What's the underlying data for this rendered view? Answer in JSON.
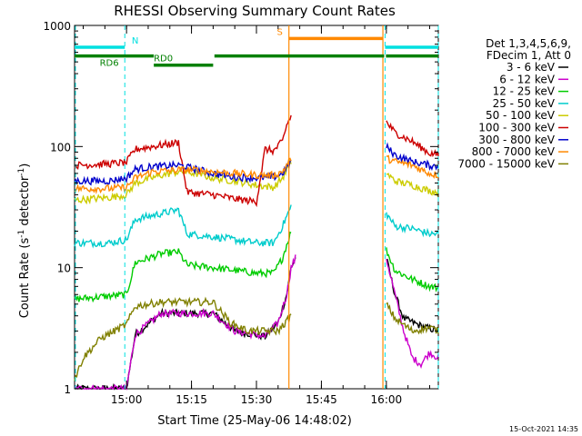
{
  "chart_data": {
    "type": "line",
    "title": "RHESSI Observing Summary Count Rates",
    "xlabel": "Start Time (25-May-06 14:48:02)",
    "ylabel_parts": [
      "Count Rate (s",
      "-1",
      " detector",
      "-1",
      ")"
    ],
    "footer": "15-Oct-2021 14:35",
    "x_range_minutes": [
      48,
      132
    ],
    "x_ticks": [
      {
        "m": 60,
        "label": "15:00"
      },
      {
        "m": 75,
        "label": "15:15"
      },
      {
        "m": 90,
        "label": "15:30"
      },
      {
        "m": 105,
        "label": "15:45"
      },
      {
        "m": 120,
        "label": "16:00"
      },
      {
        "m": 135,
        "label": "16:15"
      }
    ],
    "y_scale": "log",
    "y_range": [
      1,
      1000
    ],
    "y_ticks": [
      {
        "v": 1,
        "label": "1"
      },
      {
        "v": 10,
        "label": "10"
      },
      {
        "v": 100,
        "label": "100"
      },
      {
        "v": 1000,
        "label": "1000"
      }
    ],
    "legend": {
      "header": [
        "Det 1,3,4,5,6,9,",
        "FDecim 1, Att 0"
      ],
      "placement": "right"
    },
    "series": [
      {
        "name": "3 - 6 keV",
        "color": "#000000",
        "segments": [
          [
            [
              48,
              1.0
            ],
            [
              60,
              1.0
            ],
            [
              62,
              2.8
            ],
            [
              68,
              4.2
            ],
            [
              80,
              4.2
            ],
            [
              85,
              3.0
            ],
            [
              92,
              2.7
            ],
            [
              95,
              3.5
            ],
            [
              97,
              6.0
            ],
            [
              98,
              10
            ],
            [
              99,
              12
            ]
          ],
          [
            [
              120,
              12
            ],
            [
              122,
              6.0
            ],
            [
              124,
              3.8
            ],
            [
              128,
              3.3
            ],
            [
              132,
              3.0
            ]
          ]
        ]
      },
      {
        "name": "6 - 12 keV",
        "color": "#cc00cc",
        "segments": [
          [
            [
              48,
              1.0
            ],
            [
              60,
              1.0
            ],
            [
              62,
              2.8
            ],
            [
              68,
              4.2
            ],
            [
              80,
              4.2
            ],
            [
              85,
              3.0
            ],
            [
              92,
              2.7
            ],
            [
              95,
              3.5
            ],
            [
              97,
              6.0
            ],
            [
              98,
              10
            ],
            [
              99,
              12
            ]
          ],
          [
            [
              120,
              12
            ],
            [
              122,
              6.0
            ],
            [
              124,
              3.0
            ],
            [
              126,
              1.8
            ],
            [
              128,
              1.6
            ],
            [
              130,
              2.0
            ],
            [
              132,
              1.8
            ]
          ]
        ]
      },
      {
        "name": "12 - 25 keV",
        "color": "#00cc00",
        "segments": [
          [
            [
              48,
              5.5
            ],
            [
              60,
              6.0
            ],
            [
              62,
              11
            ],
            [
              68,
              13
            ],
            [
              72,
              13.5
            ],
            [
              74,
              10.5
            ],
            [
              80,
              10
            ],
            [
              85,
              9.5
            ],
            [
              90,
              9.0
            ],
            [
              94,
              9.0
            ],
            [
              96,
              12
            ],
            [
              98,
              20
            ]
          ],
          [
            [
              120,
              14
            ],
            [
              122,
              9.5
            ],
            [
              126,
              8.0
            ],
            [
              130,
              7.0
            ],
            [
              132,
              6.8
            ]
          ]
        ]
      },
      {
        "name": "25 - 50 keV",
        "color": "#00cccc",
        "segments": [
          [
            [
              48,
              16
            ],
            [
              56,
              16
            ],
            [
              60,
              17
            ],
            [
              62,
              25
            ],
            [
              68,
              28
            ],
            [
              72,
              30
            ],
            [
              74,
              19
            ],
            [
              80,
              18
            ],
            [
              85,
              17
            ],
            [
              90,
              16
            ],
            [
              94,
              16
            ],
            [
              96,
              22
            ],
            [
              98,
              32
            ]
          ],
          [
            [
              120,
              28
            ],
            [
              122,
              22
            ],
            [
              126,
              21
            ],
            [
              130,
              19
            ],
            [
              132,
              19
            ]
          ]
        ]
      },
      {
        "name": "50 - 100 keV",
        "color": "#cccc00",
        "segments": [
          [
            [
              48,
              36
            ],
            [
              56,
              38
            ],
            [
              60,
              40
            ],
            [
              62,
              50
            ],
            [
              68,
              58
            ],
            [
              72,
              62
            ],
            [
              76,
              60
            ],
            [
              80,
              55
            ],
            [
              85,
              52
            ],
            [
              90,
              48
            ],
            [
              94,
              46
            ],
            [
              96,
              55
            ],
            [
              98,
              75
            ]
          ],
          [
            [
              120,
              60
            ],
            [
              122,
              52
            ],
            [
              126,
              48
            ],
            [
              130,
              43
            ],
            [
              132,
              42
            ]
          ]
        ]
      },
      {
        "name": "100 - 300 keV",
        "color": "#cc0000",
        "segments": [
          [
            [
              48,
              70
            ],
            [
              56,
              72
            ],
            [
              60,
              74
            ],
            [
              62,
              95
            ],
            [
              66,
              100
            ],
            [
              72,
              108
            ],
            [
              74,
              42
            ],
            [
              80,
              40
            ],
            [
              85,
              37
            ],
            [
              90,
              35
            ],
            [
              92,
              95
            ],
            [
              94,
              92
            ],
            [
              96,
              110
            ],
            [
              97,
              150
            ],
            [
              98,
              180
            ]
          ],
          [
            [
              120,
              160
            ],
            [
              122,
              130
            ],
            [
              126,
              110
            ],
            [
              130,
              88
            ],
            [
              132,
              85
            ]
          ]
        ]
      },
      {
        "name": "300 - 800 keV",
        "color": "#0000cc",
        "segments": [
          [
            [
              48,
              52
            ],
            [
              56,
              52
            ],
            [
              60,
              55
            ],
            [
              62,
              65
            ],
            [
              66,
              68
            ],
            [
              72,
              70
            ],
            [
              76,
              65
            ],
            [
              80,
              60
            ],
            [
              85,
              56
            ],
            [
              90,
              55
            ],
            [
              94,
              56
            ],
            [
              96,
              60
            ],
            [
              98,
              75
            ]
          ],
          [
            [
              120,
              100
            ],
            [
              122,
              85
            ],
            [
              126,
              75
            ],
            [
              130,
              70
            ],
            [
              132,
              68
            ]
          ]
        ]
      },
      {
        "name": "800 - 7000 keV",
        "color": "#ff8800",
        "segments": [
          [
            [
              48,
              45
            ],
            [
              56,
              45
            ],
            [
              60,
              46
            ],
            [
              62,
              55
            ],
            [
              66,
              62
            ],
            [
              72,
              64
            ],
            [
              76,
              64
            ],
            [
              80,
              62
            ],
            [
              85,
              60
            ],
            [
              90,
              58
            ],
            [
              94,
              58
            ],
            [
              96,
              62
            ],
            [
              98,
              80
            ]
          ],
          [
            [
              120,
              80
            ],
            [
              122,
              75
            ],
            [
              126,
              70
            ],
            [
              130,
              60
            ],
            [
              132,
              58
            ]
          ]
        ]
      },
      {
        "name": "7000 - 15000 keV",
        "color": "#808000",
        "segments": [
          [
            [
              48,
              1.2
            ],
            [
              50,
              1.8
            ],
            [
              54,
              2.6
            ],
            [
              60,
              3.4
            ],
            [
              62,
              4.8
            ],
            [
              68,
              5.2
            ],
            [
              80,
              5.2
            ],
            [
              84,
              3.5
            ],
            [
              88,
              3.0
            ],
            [
              95,
              3.0
            ],
            [
              98,
              4.0
            ]
          ],
          [
            [
              120,
              5.0
            ],
            [
              122,
              3.8
            ],
            [
              126,
              3.0
            ],
            [
              130,
              3.2
            ],
            [
              132,
              3.0
            ]
          ]
        ]
      }
    ],
    "annotations": {
      "dashed_markers_cyan": [
        48.2,
        59.6,
        119.7,
        132
      ],
      "eclipse_markers_orange": [
        97.5,
        119.2
      ],
      "flags": [
        {
          "label": "N",
          "color": "#00e0e0",
          "y": 660,
          "ranges": [
            [
              48,
              59.6
            ],
            [
              119.7,
              132
            ]
          ],
          "label_at": 62
        },
        {
          "label": "S",
          "color": "#ff8800",
          "y": 780,
          "ranges": [
            [
              97.5,
              119.2
            ]
          ],
          "label_at": 95.4
        },
        {
          "label": "RD6",
          "color": "#008000",
          "y": 560,
          "ranges": [
            [
              48,
              66.3
            ]
          ],
          "label_at": 56
        },
        {
          "label": "RD0",
          "color": "#008000",
          "y": 470,
          "ranges": [
            [
              66.3,
              80
            ]
          ],
          "label_at": 68.5
        },
        {
          "label": "",
          "color": "#008000",
          "y": 560,
          "ranges": [
            [
              80.3,
              119.5
            ],
            [
              119.9,
              132
            ]
          ],
          "label_at": null
        }
      ]
    }
  }
}
